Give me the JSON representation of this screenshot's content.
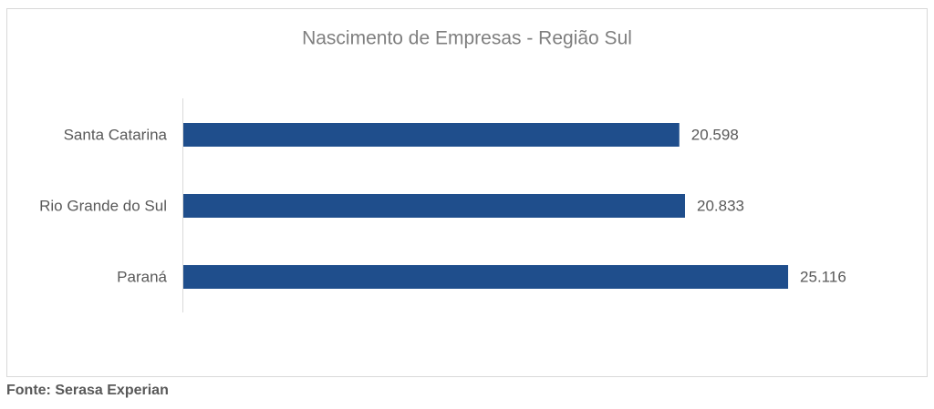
{
  "chart_data": {
    "type": "hbar",
    "title": "Nascimento de Empresas  - Região Sul",
    "categories": [
      "Santa Catarina",
      "Rio Grande do Sul",
      "Paraná"
    ],
    "values": [
      20598,
      20833,
      25116
    ],
    "value_labels": [
      "20.598",
      "20.833",
      "25.116"
    ],
    "color": "#1f4e8c",
    "xlim": [
      0,
      30000
    ]
  },
  "source": "Fonte: Serasa Experian"
}
